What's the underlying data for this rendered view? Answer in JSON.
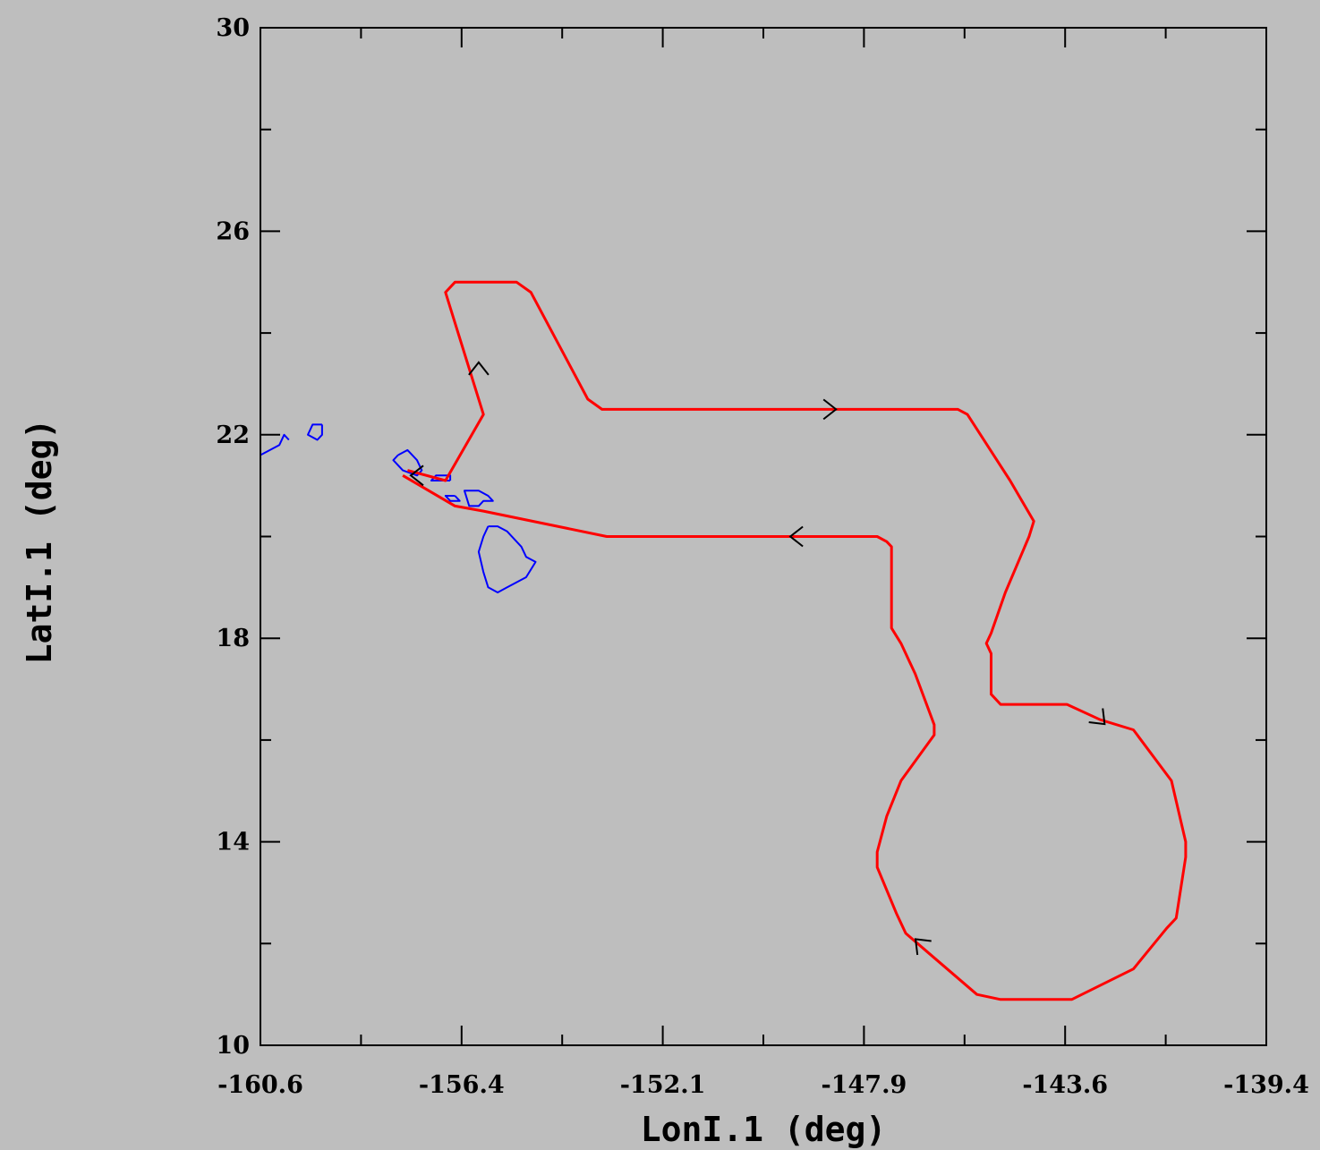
{
  "chart_data": {
    "type": "line",
    "title": "",
    "xlabel": "LonI.1 (deg)",
    "ylabel": "LatI.1 (deg)",
    "xlim": [
      -160.6,
      -139.4
    ],
    "ylim": [
      10,
      30
    ],
    "x_ticks": [
      "-160.6",
      "-156.4",
      "-152.1",
      "-147.9",
      "-143.6",
      "-139.4"
    ],
    "y_ticks": [
      "10",
      "14",
      "18",
      "22",
      "26",
      "30"
    ],
    "grid": false,
    "colors": {
      "background": "#bebebe",
      "track": "#ff0000",
      "coastline": "#0000ff",
      "axes": "#000000"
    },
    "series": [
      {
        "kind": "flight-track",
        "color": "#ff0000",
        "points": [
          [
            -157.5,
            21.3
          ],
          [
            -156.7,
            21.1
          ],
          [
            -155.9,
            22.4
          ],
          [
            -156.7,
            24.8
          ],
          [
            -156.5,
            25.0
          ],
          [
            -155.2,
            25.0
          ],
          [
            -154.9,
            24.8
          ],
          [
            -153.7,
            22.7
          ],
          [
            -153.4,
            22.5
          ],
          [
            -148.5,
            22.5
          ],
          [
            -148.0,
            22.5
          ],
          [
            -147.8,
            22.5
          ],
          [
            -147.6,
            22.5
          ],
          [
            -147.4,
            22.5
          ],
          [
            -147.1,
            22.5
          ],
          [
            -146.9,
            22.5
          ],
          [
            -146.6,
            22.5
          ],
          [
            -146.3,
            22.5
          ],
          [
            -146.1,
            22.5
          ],
          [
            -145.9,
            22.5
          ],
          [
            -145.7,
            22.4
          ],
          [
            -144.8,
            21.1
          ],
          [
            -144.3,
            20.3
          ],
          [
            -144.4,
            20.0
          ],
          [
            -144.9,
            18.9
          ],
          [
            -145.2,
            18.1
          ],
          [
            -145.3,
            17.9
          ],
          [
            -145.2,
            17.7
          ],
          [
            -145.2,
            16.9
          ],
          [
            -145.0,
            16.7
          ],
          [
            -143.6,
            16.7
          ],
          [
            -142.9,
            16.4
          ],
          [
            -142.2,
            16.2
          ],
          [
            -141.4,
            15.2
          ],
          [
            -141.1,
            14.0
          ],
          [
            -141.1,
            13.7
          ],
          [
            -141.3,
            12.5
          ],
          [
            -141.5,
            12.3
          ],
          [
            -142.2,
            11.5
          ],
          [
            -143.5,
            10.9
          ],
          [
            -144.3,
            10.9
          ],
          [
            -145.0,
            10.9
          ],
          [
            -145.5,
            11.0
          ],
          [
            -146.5,
            11.8
          ],
          [
            -147.0,
            12.2
          ],
          [
            -147.2,
            12.6
          ],
          [
            -147.6,
            13.5
          ],
          [
            -147.6,
            13.8
          ],
          [
            -147.4,
            14.5
          ],
          [
            -147.1,
            15.2
          ],
          [
            -146.4,
            16.1
          ],
          [
            -146.4,
            16.3
          ],
          [
            -146.8,
            17.3
          ],
          [
            -147.1,
            17.9
          ],
          [
            -147.3,
            18.2
          ],
          [
            -147.3,
            19.8
          ],
          [
            -147.4,
            19.9
          ],
          [
            -147.6,
            20.0
          ],
          [
            -152.6,
            20.0
          ],
          [
            -153.3,
            20.0
          ],
          [
            -155.9,
            20.5
          ],
          [
            -156.5,
            20.6
          ],
          [
            -157.6,
            21.2
          ]
        ]
      },
      {
        "kind": "coastline",
        "color": "#0000ff",
        "islands": [
          [
            [
              -155.8,
              20.2
            ],
            [
              -155.6,
              20.2
            ],
            [
              -155.4,
              20.1
            ],
            [
              -155.1,
              19.8
            ],
            [
              -155.0,
              19.6
            ],
            [
              -154.8,
              19.5
            ],
            [
              -155.0,
              19.2
            ],
            [
              -155.4,
              19.0
            ],
            [
              -155.6,
              18.9
            ],
            [
              -155.8,
              19.0
            ],
            [
              -155.9,
              19.3
            ],
            [
              -156.0,
              19.7
            ],
            [
              -155.9,
              20.0
            ],
            [
              -155.8,
              20.2
            ]
          ],
          [
            [
              -156.1,
              20.9
            ],
            [
              -156.3,
              20.9
            ],
            [
              -156.2,
              20.6
            ],
            [
              -156.0,
              20.6
            ],
            [
              -155.9,
              20.7
            ],
            [
              -155.7,
              20.7
            ],
            [
              -155.8,
              20.8
            ],
            [
              -156.0,
              20.9
            ],
            [
              -156.1,
              20.9
            ]
          ],
          [
            [
              -156.5,
              20.8
            ],
            [
              -156.7,
              20.8
            ],
            [
              -156.6,
              20.7
            ],
            [
              -156.4,
              20.7
            ],
            [
              -156.5,
              20.8
            ]
          ],
          [
            [
              -156.6,
              21.1
            ],
            [
              -157.0,
              21.1
            ],
            [
              -156.9,
              21.2
            ],
            [
              -156.6,
              21.2
            ],
            [
              -156.6,
              21.1
            ]
          ],
          [
            [
              -157.7,
              21.6
            ],
            [
              -157.5,
              21.7
            ],
            [
              -157.3,
              21.5
            ],
            [
              -157.2,
              21.3
            ],
            [
              -157.3,
              21.2
            ],
            [
              -157.6,
              21.3
            ],
            [
              -157.8,
              21.5
            ],
            [
              -157.7,
              21.6
            ]
          ],
          [
            [
              -159.3,
              22.2
            ],
            [
              -159.5,
              22.2
            ],
            [
              -159.6,
              22.0
            ],
            [
              -159.4,
              21.9
            ],
            [
              -159.3,
              22.0
            ],
            [
              -159.3,
              22.2
            ]
          ],
          [
            [
              -160.0,
              21.9
            ],
            [
              -160.1,
              22.0
            ],
            [
              -160.2,
              21.8
            ],
            [
              -160.6,
              21.6
            ]
          ]
        ]
      }
    ],
    "direction_markers": [
      {
        "x": -156.0,
        "y": 23.3,
        "heading": "north"
      },
      {
        "x": -148.6,
        "y": 22.5,
        "heading": "east"
      },
      {
        "x": -142.9,
        "y": 16.4,
        "heading": "southeast"
      },
      {
        "x": -146.7,
        "y": 12.0,
        "heading": "northwest"
      },
      {
        "x": -149.3,
        "y": 20.0,
        "heading": "west"
      },
      {
        "x": -157.3,
        "y": 21.2,
        "heading": "west"
      }
    ]
  }
}
